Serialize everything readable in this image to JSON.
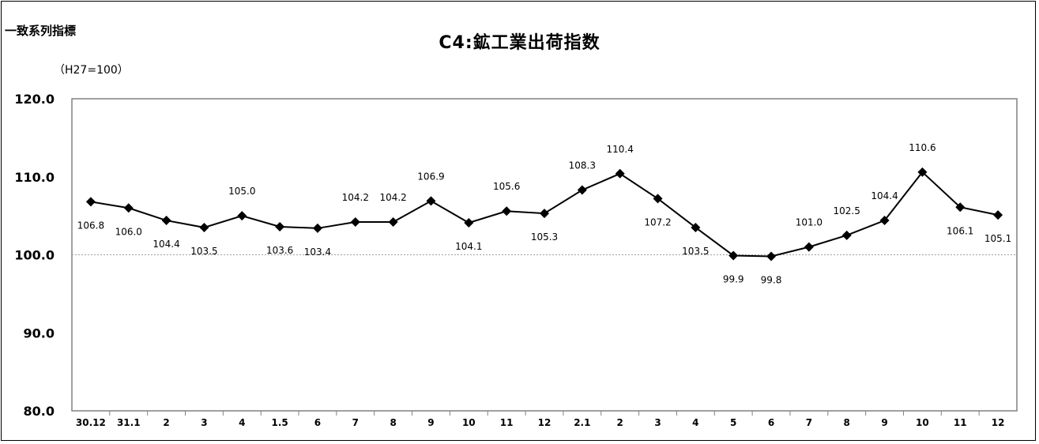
{
  "chart_data": {
    "type": "line",
    "title": "C4:鉱工業出荷指数",
    "series_label": "一致系列指標",
    "unit_label": "（H27=100）",
    "categories": [
      "30.12",
      "31.1",
      "2",
      "3",
      "4",
      "1.5",
      "6",
      "7",
      "8",
      "9",
      "10",
      "11",
      "12",
      "2.1",
      "2",
      "3",
      "4",
      "5",
      "6",
      "7",
      "8",
      "9",
      "10",
      "11",
      "12"
    ],
    "values": [
      106.8,
      106.0,
      104.4,
      103.5,
      105.0,
      103.6,
      103.4,
      104.2,
      104.2,
      106.9,
      104.1,
      105.6,
      105.3,
      108.3,
      110.4,
      107.2,
      103.5,
      99.9,
      99.8,
      101.0,
      102.5,
      104.4,
      110.6,
      106.1,
      105.1
    ],
    "data_labels": [
      "106.8",
      "106.0",
      "104.4",
      "103.5",
      "105.0",
      "103.6",
      "103.4",
      "104.2",
      "104.2",
      "106.9",
      "104.1",
      "105.6",
      "105.3",
      "108.3",
      "110.4",
      "107.2",
      "103.5",
      "99.9",
      "99.8",
      "101.0",
      "102.5",
      "104.4",
      "110.6",
      "106.1",
      "105.1"
    ],
    "label_side": [
      "below",
      "below",
      "below",
      "below",
      "above",
      "below",
      "below",
      "above",
      "above",
      "above",
      "below",
      "above",
      "below",
      "above",
      "above",
      "below",
      "below",
      "below",
      "below",
      "above",
      "above",
      "above",
      "above",
      "below",
      "below"
    ],
    "ylim": [
      80,
      120
    ],
    "yticks": [
      80,
      90,
      100,
      110,
      120
    ],
    "ytick_labels": [
      "80.0",
      "90.0",
      "100.0",
      "110.0",
      "120.0"
    ],
    "reference_line": 100,
    "marker": "diamond",
    "line_color": "#000000",
    "grid": false,
    "xlabel": "",
    "ylabel": ""
  }
}
